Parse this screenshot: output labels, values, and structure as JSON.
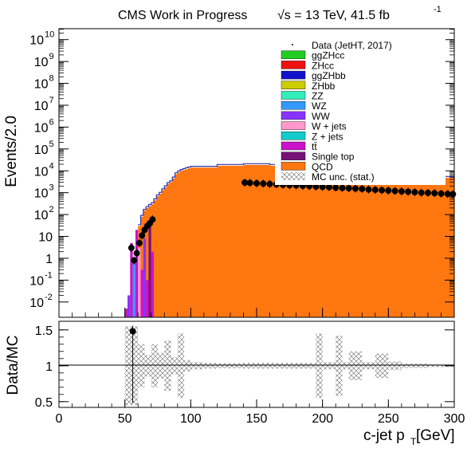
{
  "header": {
    "title": "CMS Work in Progress",
    "energy_prefix": "√s = 13 TeV, 41.5 fb",
    "energy_exp": "-1"
  },
  "chart_data": {
    "type": "histogram-ratio",
    "xlabel": "c-jet p",
    "xlabel_sub": "T",
    "xlabel_unit": " [GeV]",
    "ylabel": "Events/2.0",
    "ratio_ylabel": "Data/MC",
    "x_range": [
      0,
      300
    ],
    "y_range_log10": [
      -2.7,
      10.5
    ],
    "ratio_y_range": [
      0.42,
      1.62
    ],
    "x_ticks": [
      "0",
      "50",
      "100",
      "150",
      "200",
      "250",
      "300"
    ],
    "y_ticks": [
      {
        "base": "10",
        "exp": "10"
      },
      {
        "base": "10",
        "exp": "9"
      },
      {
        "base": "10",
        "exp": "8"
      },
      {
        "base": "10",
        "exp": "7"
      },
      {
        "base": "10",
        "exp": "6"
      },
      {
        "base": "10",
        "exp": "5"
      },
      {
        "base": "10",
        "exp": "4"
      },
      {
        "base": "10",
        "exp": "3"
      },
      {
        "base": "10",
        "exp": "2"
      },
      {
        "base": "10",
        "exp": ""
      },
      {
        "base": "1",
        "exp": ""
      },
      {
        "base": "10",
        "exp": "-1"
      },
      {
        "base": "10",
        "exp": "-2"
      }
    ],
    "ratio_ticks": [
      "1.5",
      "1",
      "0.5"
    ],
    "legend": [
      {
        "label": "Data (JetHT, 2017)",
        "color": "#000000",
        "kind": "point"
      },
      {
        "label": "ggZHcc",
        "color": "#22cc22",
        "kind": "box"
      },
      {
        "label": "ZHcc",
        "color": "#ee1111",
        "kind": "box"
      },
      {
        "label": "ggZHbb",
        "color": "#1111cc",
        "kind": "box"
      },
      {
        "label": "ZHbb",
        "color": "#cccc00",
        "kind": "box"
      },
      {
        "label": "ZZ",
        "color": "#33eebb",
        "kind": "box"
      },
      {
        "label": "WZ",
        "color": "#3399ff",
        "kind": "box"
      },
      {
        "label": "WW",
        "color": "#8833ff",
        "kind": "box"
      },
      {
        "label": "W + jets",
        "color": "#ff99cc",
        "kind": "box"
      },
      {
        "label": "Z + jets",
        "color": "#11cccc",
        "kind": "box"
      },
      {
        "label": "tt̄",
        "color": "#cc11cc",
        "kind": "box"
      },
      {
        "label": "Single top",
        "color": "#771177",
        "kind": "box"
      },
      {
        "label": "QCD",
        "color": "#ff7711",
        "kind": "box"
      },
      {
        "label": "MC unc. (stat.)",
        "color": "#555555",
        "kind": "hatch"
      }
    ],
    "qcd_turn_on": [
      [
        60,
        30
      ],
      [
        62,
        80
      ],
      [
        64,
        150
      ],
      [
        66,
        200
      ],
      [
        68,
        250
      ],
      [
        70,
        300
      ],
      [
        72,
        450
      ],
      [
        74,
        700
      ],
      [
        76,
        900
      ],
      [
        78,
        1300
      ],
      [
        80,
        1800
      ],
      [
        82,
        2500
      ],
      [
        84,
        3000
      ],
      [
        86,
        4500
      ],
      [
        88,
        7000
      ],
      [
        90,
        8500
      ],
      [
        92,
        10000
      ],
      [
        94,
        11000
      ],
      [
        96,
        12000
      ],
      [
        98,
        13000
      ]
    ],
    "qcd_plateau_start": 100,
    "qcd_plateau": [
      [
        100,
        14000
      ],
      [
        120,
        17000
      ],
      [
        140,
        18500
      ],
      [
        160,
        17000
      ],
      [
        180,
        15000
      ],
      [
        200,
        11000
      ],
      [
        220,
        9500
      ],
      [
        240,
        7500
      ],
      [
        260,
        6000
      ],
      [
        280,
        4800
      ],
      [
        300,
        3600
      ]
    ],
    "data_points": [
      [
        55,
        3
      ],
      [
        57,
        0.8
      ],
      [
        59,
        1.7
      ],
      [
        61,
        5
      ],
      [
        63,
        11
      ],
      [
        65,
        20
      ],
      [
        67,
        30
      ],
      [
        69,
        40
      ],
      [
        71,
        60
      ],
      [
        141,
        2900
      ],
      [
        145,
        2800
      ],
      [
        150,
        2700
      ],
      [
        155,
        2600
      ],
      [
        160,
        2500
      ],
      [
        165,
        2400
      ],
      [
        170,
        2300
      ],
      [
        175,
        2200
      ],
      [
        180,
        2150
      ],
      [
        185,
        2050
      ],
      [
        190,
        2000
      ],
      [
        195,
        1900
      ],
      [
        200,
        1850
      ],
      [
        205,
        1800
      ],
      [
        210,
        1700
      ],
      [
        215,
        1650
      ],
      [
        220,
        1600
      ],
      [
        225,
        1550
      ],
      [
        230,
        1500
      ],
      [
        235,
        1400
      ],
      [
        240,
        1350
      ],
      [
        245,
        1300
      ],
      [
        250,
        1250
      ],
      [
        255,
        1200
      ],
      [
        260,
        1150
      ],
      [
        265,
        1100
      ],
      [
        270,
        1050
      ],
      [
        275,
        1000
      ],
      [
        280,
        980
      ],
      [
        285,
        950
      ],
      [
        290,
        900
      ],
      [
        295,
        870
      ],
      [
        299,
        850
      ]
    ],
    "ratio_point": {
      "x": 56,
      "y": 1.48,
      "err_up": 0.08,
      "err_down": 1.0
    },
    "ratio_band": [
      [
        50,
        0.55
      ],
      [
        55,
        0.55
      ],
      [
        60,
        0.3
      ],
      [
        65,
        0.15
      ],
      [
        70,
        0.3
      ],
      [
        75,
        0.18
      ],
      [
        80,
        0.35
      ],
      [
        85,
        0.12
      ],
      [
        90,
        0.45
      ],
      [
        95,
        0.08
      ],
      [
        100,
        0.05
      ],
      [
        110,
        0.04
      ],
      [
        120,
        0.035
      ],
      [
        140,
        0.04
      ],
      [
        160,
        0.04
      ],
      [
        180,
        0.04
      ],
      [
        195,
        0.45
      ],
      [
        200,
        0.05
      ],
      [
        210,
        0.42
      ],
      [
        215,
        0.05
      ],
      [
        220,
        0.2
      ],
      [
        230,
        0.05
      ],
      [
        240,
        0.17
      ],
      [
        250,
        0.06
      ],
      [
        260,
        0.03
      ],
      [
        280,
        0.02
      ],
      [
        300,
        0.02
      ]
    ]
  }
}
